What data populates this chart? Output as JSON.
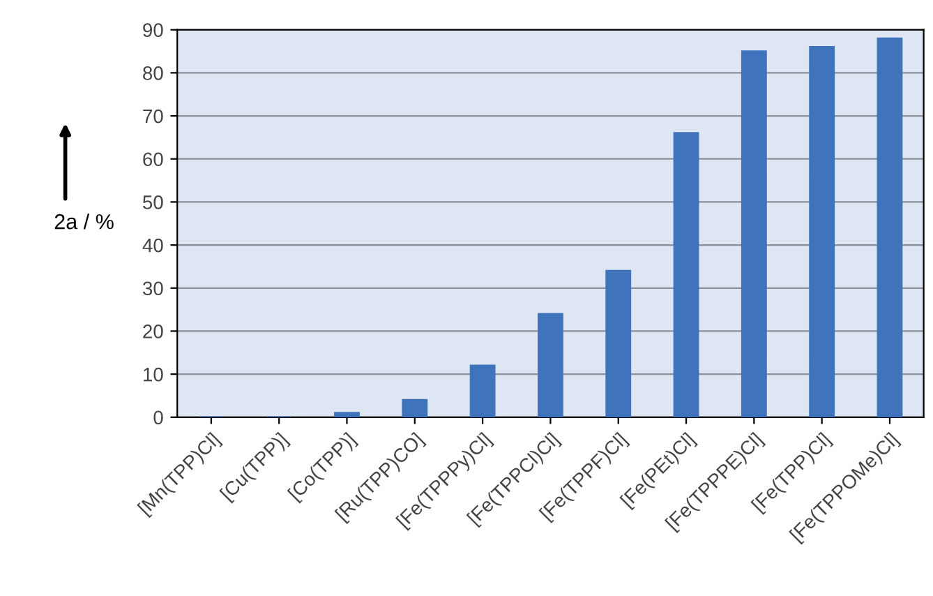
{
  "chart_data": {
    "type": "bar",
    "ylabel": "2a / %",
    "categories": [
      "[Mn(TPP)Cl]",
      "[Cu(TPP)]",
      "[Co(TPP)]",
      "[Ru(TPP)CO]",
      "[Fe(TPPPy)Cl]",
      "[Fe(TPPCl)Cl]",
      "[Fe(TPPF)Cl]",
      "[Fe(PEt)Cl]",
      "[Fe(TPPPE)Cl]",
      "[Fe(TPP)Cl]",
      "[Fe(TPPOMe)Cl]"
    ],
    "values": [
      0,
      0,
      1,
      4,
      12,
      24,
      34,
      66,
      85,
      86,
      88
    ],
    "color": "#3f74bd",
    "ylim": [
      0,
      90
    ],
    "yticks": [
      0,
      10,
      20,
      30,
      40,
      50,
      60,
      70,
      80,
      90
    ],
    "grid": "y"
  }
}
